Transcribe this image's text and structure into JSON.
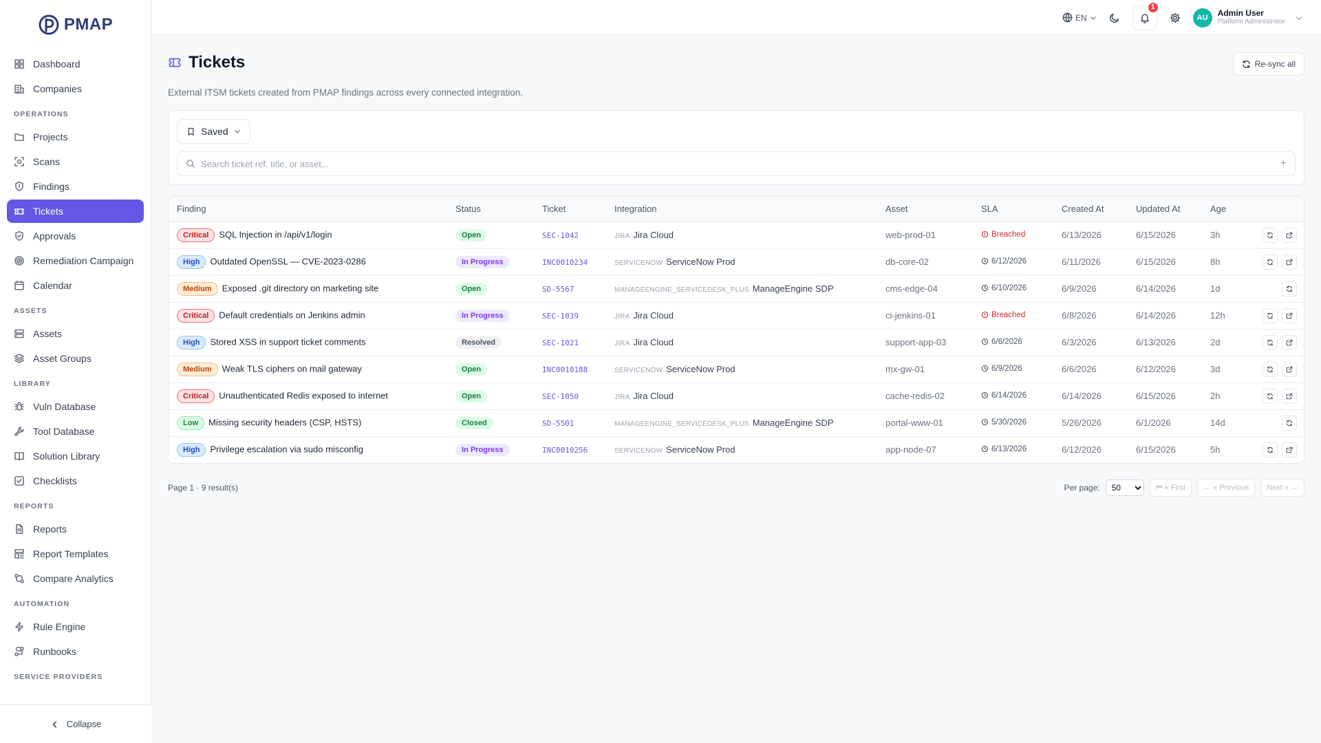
{
  "app": {
    "name": "PMAP"
  },
  "sidebar": {
    "top_items": [
      {
        "label": "Dashboard",
        "icon": "dashboard-icon"
      },
      {
        "label": "Companies",
        "icon": "building-icon"
      }
    ],
    "sections": [
      {
        "title": "OPERATIONS",
        "items": [
          {
            "label": "Projects",
            "icon": "folder-icon"
          },
          {
            "label": "Scans",
            "icon": "scan-icon"
          },
          {
            "label": "Findings",
            "icon": "shield-icon"
          },
          {
            "label": "Tickets",
            "icon": "ticket-icon",
            "active": true
          },
          {
            "label": "Approvals",
            "icon": "shield-check-icon"
          },
          {
            "label": "Remediation Campaign",
            "icon": "target-icon"
          },
          {
            "label": "Calendar",
            "icon": "calendar-icon"
          }
        ]
      },
      {
        "title": "ASSETS",
        "items": [
          {
            "label": "Assets",
            "icon": "server-icon"
          },
          {
            "label": "Asset Groups",
            "icon": "layers-icon"
          }
        ]
      },
      {
        "title": "LIBRARY",
        "items": [
          {
            "label": "Vuln Database",
            "icon": "bug-icon"
          },
          {
            "label": "Tool Database",
            "icon": "wrench-icon"
          },
          {
            "label": "Solution Library",
            "icon": "book-icon"
          },
          {
            "label": "Checklists",
            "icon": "checklist-icon"
          }
        ]
      },
      {
        "title": "REPORTS",
        "items": [
          {
            "label": "Reports",
            "icon": "file-icon"
          },
          {
            "label": "Report Templates",
            "icon": "template-icon"
          },
          {
            "label": "Compare Analytics",
            "icon": "compare-icon"
          }
        ]
      },
      {
        "title": "AUTOMATION",
        "items": [
          {
            "label": "Rule Engine",
            "icon": "zap-icon"
          },
          {
            "label": "Runbooks",
            "icon": "route-icon"
          }
        ]
      },
      {
        "title": "SERVICE PROVIDERS",
        "items": []
      }
    ],
    "collapse_label": "Collapse"
  },
  "topbar": {
    "language": "EN",
    "notifications_count": "1",
    "user_initials": "AU",
    "user_name": "Admin User",
    "user_role": "Platform Administrator"
  },
  "page": {
    "title": "Tickets",
    "subtitle": "External ITSM tickets created from PMAP findings across every connected integration.",
    "resync_label": "Re-sync all",
    "saved_label": "Saved",
    "search_placeholder": "Search ticket ref, title, or asset..."
  },
  "table": {
    "columns": [
      "Finding",
      "Status",
      "Ticket",
      "Integration",
      "Asset",
      "SLA",
      "Created At",
      "Updated At",
      "Age"
    ],
    "rows": [
      {
        "severity": "Critical",
        "finding": "SQL Injection in /api/v1/login",
        "status": "Open",
        "ticket": "SEC-1042",
        "integration_type": "JIRA",
        "integration_name": "Jira Cloud",
        "asset": "web-prod-01",
        "sla": "Breached",
        "sla_breached": true,
        "created": "6/13/2026",
        "updated": "6/15/2026",
        "age": "3h",
        "actions": 2
      },
      {
        "severity": "High",
        "finding": "Outdated OpenSSL — CVE-2023-0286",
        "status": "In Progress",
        "ticket": "INC0010234",
        "integration_type": "SERVICENOW",
        "integration_name": "ServiceNow Prod",
        "asset": "db-core-02",
        "sla": "6/12/2026",
        "sla_breached": false,
        "created": "6/11/2026",
        "updated": "6/15/2026",
        "age": "8h",
        "actions": 2
      },
      {
        "severity": "Medium",
        "finding": "Exposed .git directory on marketing site",
        "status": "Open",
        "ticket": "SD-5567",
        "integration_type": "MANAGEENGINE_SERVICEDESK_PLUS",
        "integration_name": "ManageEngine SDP",
        "asset": "cms-edge-04",
        "sla": "6/10/2026",
        "sla_breached": false,
        "created": "6/9/2026",
        "updated": "6/14/2026",
        "age": "1d",
        "actions": 1
      },
      {
        "severity": "Critical",
        "finding": "Default credentials on Jenkins admin",
        "status": "In Progress",
        "ticket": "SEC-1039",
        "integration_type": "JIRA",
        "integration_name": "Jira Cloud",
        "asset": "ci-jenkins-01",
        "sla": "Breached",
        "sla_breached": true,
        "created": "6/8/2026",
        "updated": "6/14/2026",
        "age": "12h",
        "actions": 2
      },
      {
        "severity": "High",
        "finding": "Stored XSS in support ticket comments",
        "status": "Resolved",
        "ticket": "SEC-1021",
        "integration_type": "JIRA",
        "integration_name": "Jira Cloud",
        "asset": "support-app-03",
        "sla": "6/6/2026",
        "sla_breached": false,
        "created": "6/3/2026",
        "updated": "6/13/2026",
        "age": "2d",
        "actions": 2
      },
      {
        "severity": "Medium",
        "finding": "Weak TLS ciphers on mail gateway",
        "status": "Open",
        "ticket": "INC0010188",
        "integration_type": "SERVICENOW",
        "integration_name": "ServiceNow Prod",
        "asset": "mx-gw-01",
        "sla": "6/9/2026",
        "sla_breached": false,
        "created": "6/6/2026",
        "updated": "6/12/2026",
        "age": "3d",
        "actions": 2
      },
      {
        "severity": "Critical",
        "finding": "Unauthenticated Redis exposed to internet",
        "status": "Open",
        "ticket": "SEC-1050",
        "integration_type": "JIRA",
        "integration_name": "Jira Cloud",
        "asset": "cache-redis-02",
        "sla": "6/14/2026",
        "sla_breached": false,
        "created": "6/14/2026",
        "updated": "6/15/2026",
        "age": "2h",
        "actions": 2
      },
      {
        "severity": "Low",
        "finding": "Missing security headers (CSP, HSTS)",
        "status": "Closed",
        "ticket": "SD-5501",
        "integration_type": "MANAGEENGINE_SERVICEDESK_PLUS",
        "integration_name": "ManageEngine SDP",
        "asset": "portal-www-01",
        "sla": "5/30/2026",
        "sla_breached": false,
        "created": "5/26/2026",
        "updated": "6/1/2026",
        "age": "14d",
        "actions": 1
      },
      {
        "severity": "High",
        "finding": "Privilege escalation via sudo misconfig",
        "status": "In Progress",
        "ticket": "INC0010256",
        "integration_type": "SERVICENOW",
        "integration_name": "ServiceNow Prod",
        "asset": "app-node-07",
        "sla": "6/13/2026",
        "sla_breached": false,
        "created": "6/12/2026",
        "updated": "6/15/2026",
        "age": "5h",
        "actions": 2
      }
    ]
  },
  "pagination": {
    "info": "Page 1 · 9 result(s)",
    "per_page_label": "Per page:",
    "per_page_value": "50",
    "first_label": "⏮ « First",
    "prev_label": "← « Previous",
    "next_label": "Next » →"
  }
}
